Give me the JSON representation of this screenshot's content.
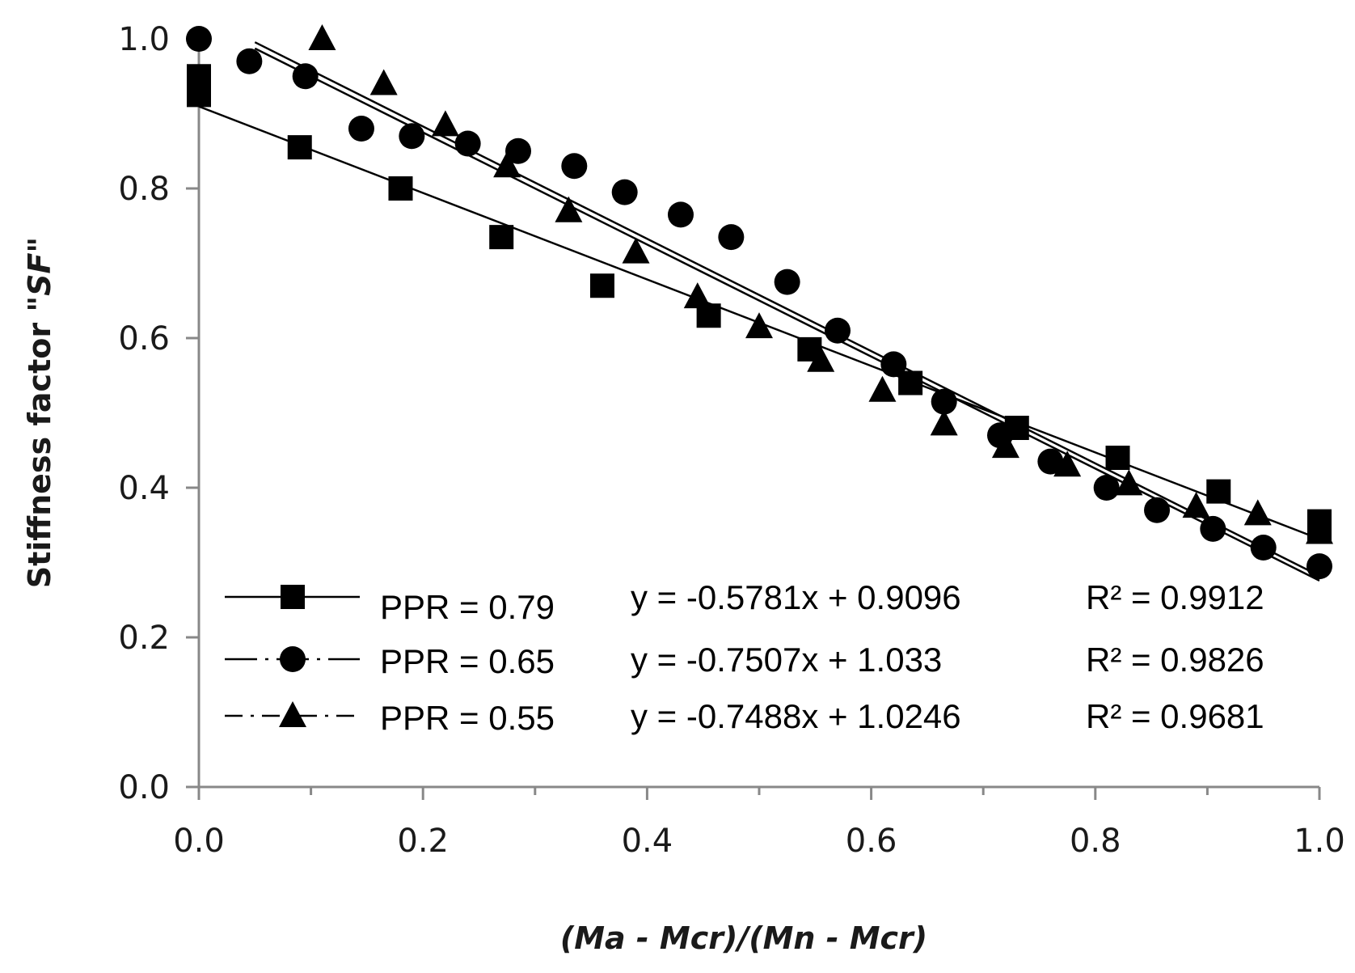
{
  "chart_data": {
    "type": "scatter",
    "title": "",
    "xlabel": "(Ma - Mcr)/(Mn - Mcr)",
    "ylabel_prefix": "Stiffness factor \"",
    "ylabel_italic": "SF",
    "ylabel_suffix": "\"",
    "xlim": [
      0,
      1
    ],
    "ylim": [
      0,
      1
    ],
    "xticks": [
      "0.0",
      "0.2",
      "0.4",
      "0.6",
      "0.8",
      "1.0"
    ],
    "yticks": [
      "0.0",
      "0.2",
      "0.4",
      "0.6",
      "0.8",
      "1.0"
    ],
    "grid": false,
    "legend_position": "bottom-left",
    "series": [
      {
        "name": "PPR = 0.79",
        "marker": "square",
        "line_style": "solid",
        "equation": "y = -0.5781x + 0.9096",
        "r2": "R² = 0.9912",
        "slope": -0.5781,
        "intercept": 0.9096,
        "fit_range": [
          0,
          1
        ],
        "points": [
          [
            0.0,
            0.95
          ],
          [
            0.0,
            0.925
          ],
          [
            0.09,
            0.855
          ],
          [
            0.18,
            0.8
          ],
          [
            0.27,
            0.735
          ],
          [
            0.36,
            0.67
          ],
          [
            0.455,
            0.63
          ],
          [
            0.545,
            0.585
          ],
          [
            0.635,
            0.54
          ],
          [
            0.73,
            0.48
          ],
          [
            0.82,
            0.44
          ],
          [
            0.91,
            0.395
          ],
          [
            1.0,
            0.355
          ],
          [
            1.0,
            0.345
          ]
        ]
      },
      {
        "name": "PPR = 0.65",
        "marker": "circle",
        "line_style": "long-dash-dot",
        "equation": "y = -0.7507x + 1.033",
        "r2": "R² = 0.9826",
        "slope": -0.7507,
        "intercept": 1.033,
        "fit_range": [
          0.05,
          1
        ],
        "points": [
          [
            0.0,
            1.0
          ],
          [
            0.045,
            0.97
          ],
          [
            0.095,
            0.95
          ],
          [
            0.145,
            0.88
          ],
          [
            0.19,
            0.87
          ],
          [
            0.24,
            0.86
          ],
          [
            0.285,
            0.85
          ],
          [
            0.335,
            0.83
          ],
          [
            0.38,
            0.795
          ],
          [
            0.43,
            0.765
          ],
          [
            0.475,
            0.735
          ],
          [
            0.525,
            0.675
          ],
          [
            0.57,
            0.61
          ],
          [
            0.62,
            0.565
          ],
          [
            0.665,
            0.515
          ],
          [
            0.715,
            0.47
          ],
          [
            0.76,
            0.435
          ],
          [
            0.81,
            0.4
          ],
          [
            0.855,
            0.37
          ],
          [
            0.905,
            0.345
          ],
          [
            0.95,
            0.32
          ],
          [
            1.0,
            0.295
          ]
        ]
      },
      {
        "name": "PPR = 0.55",
        "marker": "triangle",
        "line_style": "dash-dot",
        "equation": "y = -0.7488x + 1.0246",
        "r2": "R² = 0.9681",
        "slope": -0.7488,
        "intercept": 1.0246,
        "fit_range": [
          0.05,
          1
        ],
        "points": [
          [
            0.11,
            1.0
          ],
          [
            0.165,
            0.94
          ],
          [
            0.22,
            0.885
          ],
          [
            0.275,
            0.83
          ],
          [
            0.33,
            0.77
          ],
          [
            0.39,
            0.715
          ],
          [
            0.445,
            0.655
          ],
          [
            0.5,
            0.615
          ],
          [
            0.555,
            0.57
          ],
          [
            0.61,
            0.53
          ],
          [
            0.665,
            0.485
          ],
          [
            0.72,
            0.455
          ],
          [
            0.775,
            0.43
          ],
          [
            0.83,
            0.405
          ],
          [
            0.89,
            0.375
          ],
          [
            0.945,
            0.365
          ],
          [
            1.0,
            0.34
          ]
        ]
      }
    ]
  }
}
